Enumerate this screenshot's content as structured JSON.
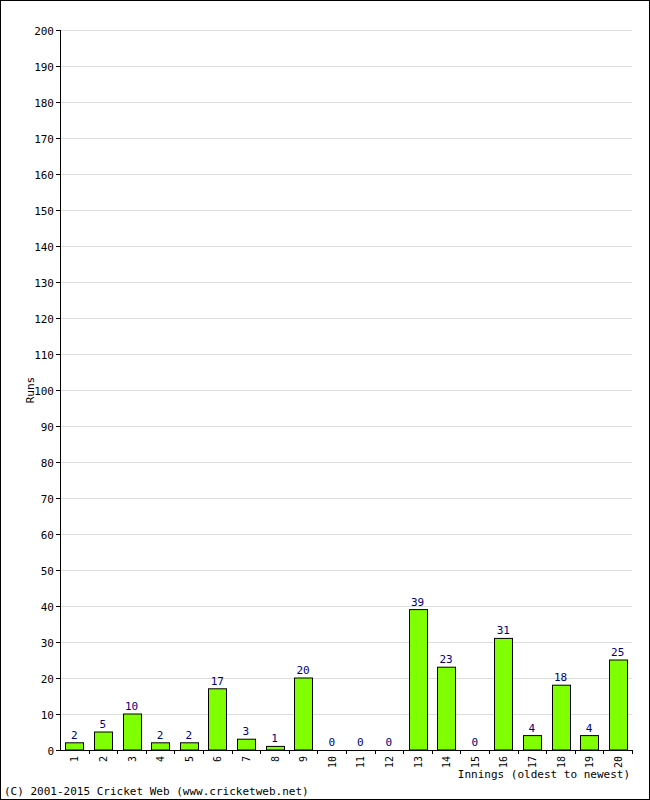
{
  "chart_data": {
    "type": "bar",
    "x_label": "Innings (oldest to newest)",
    "y_label": "Runs",
    "annotations": [
      "(C) 2001-2015 Cricket Web (www.cricketweb.net)"
    ],
    "categories": [
      "1",
      "2",
      "3",
      "4",
      "5",
      "6",
      "7",
      "8",
      "9",
      "10",
      "11",
      "12",
      "13",
      "14",
      "15",
      "16",
      "17",
      "18",
      "19",
      "20"
    ],
    "values": [
      2,
      5,
      10,
      2,
      2,
      17,
      3,
      1,
      20,
      0,
      0,
      0,
      39,
      23,
      0,
      31,
      4,
      18,
      4,
      25
    ],
    "color": "#80ff00",
    "ylim": [
      0,
      200
    ],
    "yticks": [
      0,
      10,
      20,
      30,
      40,
      50,
      60,
      70,
      80,
      90,
      100,
      110,
      120,
      130,
      140,
      150,
      160,
      170,
      180,
      190,
      200
    ],
    "grid": true,
    "data_labels": true
  }
}
